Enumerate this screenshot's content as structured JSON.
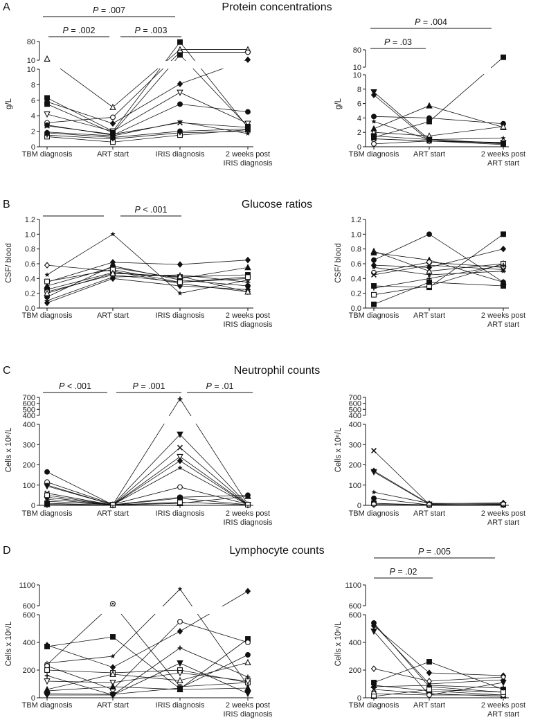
{
  "figure": {
    "panels": [
      {
        "letter": "A",
        "title": "Protein concentrations"
      },
      {
        "letter": "B",
        "title": "Glucose ratios"
      },
      {
        "letter": "C",
        "title": "Neutrophil counts"
      },
      {
        "letter": "D",
        "title": "Lymphocyte counts"
      }
    ]
  },
  "chart_data": [
    {
      "type": "line",
      "panel": "A",
      "side": "left",
      "ylabel": "g/L",
      "categories": [
        [
          "TBM diagnosis"
        ],
        [
          "ART start"
        ],
        [
          "IRIS diagnosis"
        ],
        [
          "2 weeks post",
          "IRIS diagnosis"
        ]
      ],
      "y_segments": [
        {
          "range": [
            0,
            10
          ],
          "ticks": [
            0,
            2,
            4,
            6,
            8,
            10
          ]
        },
        {
          "range": [
            10,
            80
          ],
          "ticks": [
            10,
            80
          ]
        }
      ],
      "annotations": [
        "P = .007",
        "P = .002",
        "P = .003"
      ],
      "series": [
        {
          "marker": "triangle-open",
          "values": [
            15,
            5.1,
            50,
            50
          ]
        },
        {
          "marker": "square",
          "values": [
            6.3,
            2.0,
            78,
            2.5
          ]
        },
        {
          "marker": "circle-open",
          "values": [
            3.1,
            3.8,
            40,
            40
          ]
        },
        {
          "marker": "diamond",
          "values": [
            5.8,
            3.0,
            8.1,
            12
          ]
        },
        {
          "marker": "tri-down-open",
          "values": [
            4.2,
            2.0,
            7.0,
            3.0
          ]
        },
        {
          "marker": "circle",
          "values": [
            2.8,
            1.5,
            5.5,
            4.5
          ]
        },
        {
          "marker": "square",
          "values": [
            5.5,
            1.8,
            30,
            2.6
          ]
        },
        {
          "marker": "star",
          "values": [
            1.9,
            1.4,
            3.2,
            1.7
          ]
        },
        {
          "marker": "square-open",
          "values": [
            1.3,
            0.6,
            1.5,
            2.2
          ]
        },
        {
          "marker": "x",
          "values": [
            2.7,
            1.6,
            3.1,
            2.5
          ]
        },
        {
          "marker": "circle",
          "values": [
            1.8,
            1.2,
            2.0,
            2.3
          ]
        },
        {
          "marker": "plus",
          "values": [
            1.5,
            1.0,
            1.8,
            2.0
          ]
        }
      ]
    },
    {
      "type": "line",
      "panel": "A",
      "side": "right",
      "ylabel": "g/L",
      "categories": [
        [
          "TBM diagnosis"
        ],
        [
          "ART start"
        ],
        [
          "2 weeks post",
          "ART start"
        ]
      ],
      "y_segments": [
        {
          "range": [
            0,
            10
          ],
          "ticks": [
            0,
            2,
            4,
            6,
            8,
            10
          ]
        },
        {
          "range": [
            10,
            80
          ],
          "ticks": [
            10,
            80
          ]
        }
      ],
      "annotations": [
        "P = .004",
        "P = .03"
      ],
      "series": [
        {
          "marker": "tri-down",
          "values": [
            7.6,
            1.0,
            0.5
          ]
        },
        {
          "marker": "diamond",
          "values": [
            7.2,
            0.8,
            0.3
          ]
        },
        {
          "marker": "triangle",
          "values": [
            2.5,
            5.7,
            2.7
          ]
        },
        {
          "marker": "circle",
          "values": [
            4.2,
            4.0,
            3.2
          ]
        },
        {
          "marker": "square",
          "values": [
            1.3,
            3.5,
            50
          ]
        },
        {
          "marker": "circle-open",
          "values": [
            0.4,
            0.8,
            0.5
          ]
        },
        {
          "marker": "triangle-open",
          "values": [
            2.0,
            1.5,
            2.8
          ]
        },
        {
          "marker": "square",
          "values": [
            1.5,
            1.0,
            0.4
          ]
        },
        {
          "marker": "x",
          "values": [
            1.1,
            0.8,
            0.6
          ]
        },
        {
          "marker": "star",
          "values": [
            3.5,
            1.0,
            1.2
          ]
        }
      ]
    },
    {
      "type": "line",
      "panel": "B",
      "side": "left",
      "ylabel": "CSF/ blood",
      "categories": [
        [
          "TBM diagnosis"
        ],
        [
          "ART start"
        ],
        [
          "IRIS diagnosis"
        ],
        [
          "2 weeks post",
          "IRIS diagnosis"
        ]
      ],
      "y_segments": [
        {
          "range": [
            0,
            1.2
          ],
          "ticks": [
            "0.0",
            "0.2",
            "0.4",
            "0.6",
            "0.8",
            "1.0",
            "1.2"
          ]
        }
      ],
      "annotations": [
        "",
        "P < .001"
      ],
      "series": [
        {
          "marker": "diamond-open",
          "values": [
            0.58,
            0.5,
            0.33,
            0.22
          ]
        },
        {
          "marker": "star",
          "values": [
            0.45,
            1.0,
            0.2,
            0.38
          ]
        },
        {
          "marker": "diamond",
          "values": [
            0.35,
            0.62,
            0.59,
            0.65
          ]
        },
        {
          "marker": "triangle",
          "values": [
            0.3,
            0.55,
            0.4,
            0.55
          ]
        },
        {
          "marker": "square",
          "values": [
            0.25,
            0.48,
            0.42,
            0.45
          ]
        },
        {
          "marker": "circle-open",
          "values": [
            0.22,
            0.45,
            0.35,
            0.4
          ]
        },
        {
          "marker": "circle",
          "values": [
            0.15,
            0.57,
            0.38,
            0.3
          ]
        },
        {
          "marker": "plus",
          "values": [
            0.1,
            0.42,
            0.45,
            0.35
          ]
        },
        {
          "marker": "diamond",
          "values": [
            0.07,
            0.4,
            0.3,
            0.25
          ]
        },
        {
          "marker": "square-open",
          "values": [
            0.36,
            0.52,
            0.35,
            0.42
          ]
        },
        {
          "marker": "triangle-open",
          "values": [
            0.2,
            0.47,
            0.43,
            0.22
          ]
        }
      ]
    },
    {
      "type": "line",
      "panel": "B",
      "side": "right",
      "ylabel": "CSF/ blood",
      "categories": [
        [
          "TBM diagnosis"
        ],
        [
          "ART start"
        ],
        [
          "2 weeks post",
          "ART start"
        ]
      ],
      "y_segments": [
        {
          "range": [
            0,
            1.2
          ],
          "ticks": [
            "0.0",
            "0.2",
            "0.4",
            "0.6",
            "0.8",
            "1.0",
            "1.2"
          ]
        }
      ],
      "annotations": [],
      "series": [
        {
          "marker": "triangle-open",
          "values": [
            0.77,
            0.5,
            0.6
          ]
        },
        {
          "marker": "triangle",
          "values": [
            0.75,
            0.65,
            0.35
          ]
        },
        {
          "marker": "circle",
          "values": [
            0.65,
            1.0,
            0.35
          ]
        },
        {
          "marker": "diamond",
          "values": [
            0.58,
            0.55,
            0.8
          ]
        },
        {
          "marker": "circle-open",
          "values": [
            0.48,
            0.62,
            0.55
          ]
        },
        {
          "marker": "square",
          "values": [
            0.3,
            0.28,
            1.0
          ]
        },
        {
          "marker": "square-open",
          "values": [
            0.18,
            0.3,
            0.6
          ]
        },
        {
          "marker": "square",
          "values": [
            0.05,
            0.35,
            0.3
          ]
        },
        {
          "marker": "x",
          "values": [
            0.45,
            0.58,
            0.52
          ]
        },
        {
          "marker": "star",
          "values": [
            0.55,
            0.45,
            0.5
          ]
        },
        {
          "marker": "plus",
          "values": [
            0.27,
            0.4,
            0.58
          ]
        }
      ]
    },
    {
      "type": "line",
      "panel": "C",
      "side": "left",
      "ylabel": "Cells x 10⁶/L",
      "categories": [
        [
          "TBM diagnosis"
        ],
        [
          "ART start"
        ],
        [
          "IRIS diagnosis"
        ],
        [
          "2 weeks post",
          "IRIS diagnosis"
        ]
      ],
      "y_segments": [
        {
          "range": [
            0,
            400
          ],
          "ticks": [
            0,
            100,
            200,
            300,
            400
          ]
        },
        {
          "range": [
            400,
            700
          ],
          "ticks": [
            400,
            500,
            600,
            700
          ]
        }
      ],
      "annotations": [
        "P < .001",
        "P = .001",
        "P = .01"
      ],
      "series": [
        {
          "marker": "circle",
          "values": [
            165,
            3,
            40,
            50
          ]
        },
        {
          "marker": "circle-open",
          "values": [
            115,
            5,
            90,
            5
          ]
        },
        {
          "marker": "plus",
          "values": [
            100,
            3,
            675,
            5
          ]
        },
        {
          "marker": "tri-down",
          "values": [
            95,
            3,
            350,
            3
          ]
        },
        {
          "marker": "x",
          "values": [
            60,
            2,
            285,
            2
          ]
        },
        {
          "marker": "tri-down-open",
          "values": [
            30,
            2,
            240,
            2
          ]
        },
        {
          "marker": "diamond",
          "values": [
            40,
            2,
            220,
            2
          ]
        },
        {
          "marker": "star",
          "values": [
            20,
            3,
            185,
            2
          ]
        },
        {
          "marker": "square",
          "values": [
            10,
            1,
            35,
            3
          ]
        },
        {
          "marker": "triangle",
          "values": [
            5,
            1,
            10,
            45
          ]
        },
        {
          "marker": "square-open",
          "values": [
            50,
            2,
            15,
            3
          ]
        }
      ]
    },
    {
      "type": "line",
      "panel": "C",
      "side": "right",
      "ylabel": "Cells x 10⁶/L",
      "categories": [
        [
          "TBM diagnosis"
        ],
        [
          "ART start"
        ],
        [
          "2 weeks post",
          "ART start"
        ]
      ],
      "y_segments": [
        {
          "range": [
            0,
            400
          ],
          "ticks": [
            0,
            100,
            200,
            300,
            400
          ]
        },
        {
          "range": [
            400,
            700
          ],
          "ticks": [
            400,
            500,
            600,
            700
          ]
        }
      ],
      "annotations": [],
      "series": [
        {
          "marker": "x",
          "values": [
            270,
            5,
            2
          ]
        },
        {
          "marker": "diamond",
          "values": [
            170,
            8,
            12
          ]
        },
        {
          "marker": "tri-down",
          "values": [
            165,
            5,
            3
          ]
        },
        {
          "marker": "star",
          "values": [
            65,
            10,
            8
          ]
        },
        {
          "marker": "circle",
          "values": [
            35,
            2,
            5
          ]
        },
        {
          "marker": "square",
          "values": [
            10,
            2,
            3
          ]
        },
        {
          "marker": "circle-open",
          "values": [
            5,
            3,
            5
          ]
        }
      ]
    },
    {
      "type": "line",
      "panel": "D",
      "side": "left",
      "ylabel": "Cells x 10⁶/L",
      "categories": [
        [
          "TBM diagnosis"
        ],
        [
          "ART start"
        ],
        [
          "IRIS diagnosis"
        ],
        [
          "2 weeks post",
          "IRIS diagnosis"
        ]
      ],
      "y_segments": [
        {
          "range": [
            0,
            600
          ],
          "ticks": [
            0,
            200,
            400,
            600
          ]
        },
        {
          "range": [
            600,
            1100
          ],
          "ticks": [
            600,
            1100
          ]
        }
      ],
      "annotations": [],
      "series": [
        {
          "marker": "square",
          "values": [
            370,
            440,
            65,
            425
          ]
        },
        {
          "marker": "star",
          "values": [
            250,
            300,
            1000,
            90
          ]
        },
        {
          "marker": "circle-dot",
          "values": [
            240,
            650,
            80,
            110
          ]
        },
        {
          "marker": "diamond",
          "values": [
            380,
            220,
            480,
            950
          ]
        },
        {
          "marker": "circle-open",
          "values": [
            230,
            60,
            550,
            400
          ]
        },
        {
          "marker": "square-open",
          "values": [
            200,
            180,
            200,
            110
          ]
        },
        {
          "marker": "tri-down-open",
          "values": [
            120,
            110,
            180,
            120
          ]
        },
        {
          "marker": "plus",
          "values": [
            160,
            20,
            360,
            150
          ]
        },
        {
          "marker": "triangle-open",
          "values": [
            60,
            170,
            125,
            255
          ]
        },
        {
          "marker": "circle",
          "values": [
            30,
            25,
            70,
            310
          ]
        },
        {
          "marker": "tri-down",
          "values": [
            20,
            20,
            250,
            30
          ]
        },
        {
          "marker": "triangle",
          "values": [
            50,
            80,
            60,
            70
          ]
        }
      ]
    },
    {
      "type": "line",
      "panel": "D",
      "side": "right",
      "ylabel": "Cells x 10⁶/L",
      "categories": [
        [
          "TBM diagnosis"
        ],
        [
          "ART start"
        ],
        [
          "2 weeks post",
          "ART start"
        ]
      ],
      "y_segments": [
        {
          "range": [
            0,
            600
          ],
          "ticks": [
            0,
            200,
            400,
            600
          ]
        },
        {
          "range": [
            600,
            1100
          ],
          "ticks": [
            600,
            1100
          ]
        }
      ],
      "annotations": [
        "P = .005",
        "P = .02"
      ],
      "series": [
        {
          "marker": "circle",
          "values": [
            540,
            80,
            40
          ]
        },
        {
          "marker": "star",
          "values": [
            530,
            100,
            130
          ]
        },
        {
          "marker": "diamond",
          "values": [
            520,
            180,
            160
          ]
        },
        {
          "marker": "tri-down",
          "values": [
            480,
            20,
            110
          ]
        },
        {
          "marker": "diamond-open",
          "values": [
            210,
            120,
            150
          ]
        },
        {
          "marker": "square",
          "values": [
            110,
            260,
            60
          ]
        },
        {
          "marker": "triangle",
          "values": [
            90,
            50,
            20
          ]
        },
        {
          "marker": "x",
          "values": [
            60,
            30,
            10
          ]
        },
        {
          "marker": "circle-open",
          "values": [
            30,
            20,
            20
          ]
        },
        {
          "marker": "square-open",
          "values": [
            10,
            60,
            40
          ]
        },
        {
          "marker": "plus",
          "values": [
            80,
            90,
            70
          ]
        }
      ]
    }
  ]
}
